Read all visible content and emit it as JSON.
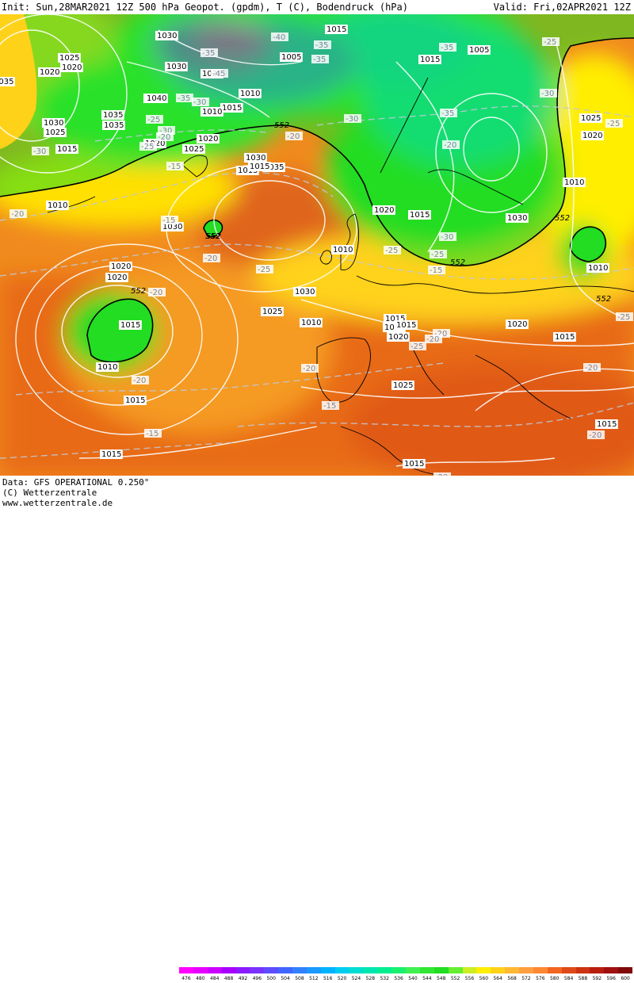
{
  "header": {
    "init": "Init: Sun,28MAR2021 12Z",
    "title": "500 hPa Geopot. (gpdm), T (C), Bodendruck (hPa)",
    "valid": "Valid: Fri,02APR2021 12Z"
  },
  "footer": {
    "data_line": "Data: GFS OPERATIONAL 0.250°",
    "copyright": "(C) Wetterzentrale",
    "website": "www.wetterzentrale.de"
  },
  "legend": {
    "labels": [
      "476",
      "480",
      "484",
      "488",
      "492",
      "496",
      "500",
      "504",
      "508",
      "512",
      "516",
      "520",
      "524",
      "528",
      "532",
      "536",
      "540",
      "544",
      "548",
      "552",
      "556",
      "560",
      "564",
      "568",
      "572",
      "576",
      "580",
      "584",
      "588",
      "592",
      "596",
      "600"
    ],
    "colors": [
      "#ff00ff",
      "#e600ff",
      "#cc00ff",
      "#a600ff",
      "#8c1aff",
      "#7a33ff",
      "#5c4dff",
      "#4066ff",
      "#3380ff",
      "#1a99ff",
      "#00b3ff",
      "#00ccf0",
      "#00ddd0",
      "#00e6b0",
      "#00ee90",
      "#1af070",
      "#40f050",
      "#33e633",
      "#22dd22",
      "#66ee33",
      "#ccee22",
      "#ffee00",
      "#ffd21a",
      "#ffb833",
      "#ff9f40",
      "#ff8833",
      "#f26622",
      "#e04a1a",
      "#cc3311",
      "#b81e0d",
      "#a01010",
      "#800a0a"
    ]
  },
  "map": {
    "pressure_labels": [
      "1035",
      "1030",
      "1025",
      "1020",
      "1020",
      "1040",
      "1035",
      "1030",
      "1025",
      "1015",
      "1010",
      "1025",
      "1030",
      "1040",
      "1035",
      "1030",
      "1025",
      "1020",
      "1020",
      "1025",
      "1015",
      "1010",
      "1035",
      "1030",
      "1010",
      "1005",
      "1015",
      "1015",
      "1005",
      "1010",
      "1025",
      "1020",
      "1020",
      "1015",
      "1030",
      "1010",
      "1020",
      "1020",
      "1015",
      "1010",
      "1025",
      "1030",
      "1010",
      "1015",
      "1030",
      "1025",
      "1020",
      "1015",
      "1015",
      "1015",
      "1015",
      "1015",
      "1015",
      "1010",
      "1015",
      "1020",
      "1015"
    ],
    "temperature_labels": [
      "-40",
      "-35",
      "-35",
      "-35",
      "-45",
      "-35",
      "-30",
      "-25",
      "-30",
      "-25",
      "-20",
      "-35",
      "-30",
      "-35",
      "-20",
      "-30",
      "-30",
      "-25",
      "-25",
      "-15",
      "-20",
      "-15",
      "-20",
      "-25",
      "-25",
      "-20",
      "-30",
      "-20",
      "-25",
      "-20",
      "-20",
      "-25",
      "-20",
      "-20",
      "-15",
      "-15",
      "-20",
      "-20",
      "-15",
      "-25",
      "-20"
    ],
    "height_labels": [
      "552",
      "552",
      "552",
      "552",
      "552",
      "552",
      "552"
    ]
  }
}
